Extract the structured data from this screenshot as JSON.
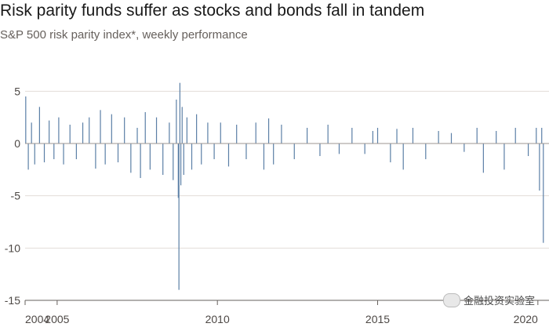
{
  "header": {
    "title": "Risk parity funds suffer as stocks and bonds fall in tandem",
    "subtitle": "S&P 500 risk parity index*, weekly performance"
  },
  "watermark": {
    "text": "金融投资实验室"
  },
  "colors": {
    "bars": "#5b7fa6",
    "grid": "#e3ddd8",
    "zero_line": "#9c9691",
    "axis_line": "#66605c"
  },
  "chart_data": {
    "type": "bar",
    "title": "Risk parity funds suffer as stocks and bonds fall in tandem",
    "subtitle": "S&P 500 risk parity index*, weekly performance",
    "xlabel": "",
    "ylabel": "",
    "xlim": [
      2004.0,
      2020.2
    ],
    "ylim": [
      -15,
      6
    ],
    "yticks": [
      5,
      0,
      -5,
      -10,
      -15
    ],
    "ytick_labels": [
      "5",
      "0",
      "-5",
      "-10",
      "-15"
    ],
    "xticks": [
      2004,
      2005,
      2010,
      2015,
      2020
    ],
    "xtick_labels": [
      "2004",
      "2005",
      "2010",
      "2015",
      "2020"
    ],
    "grid": true,
    "note": "",
    "series": [
      {
        "x": [
          2004.02,
          2004.1,
          2004.2,
          2004.3,
          2004.45,
          2004.6,
          2004.75,
          2004.9,
          2005.05,
          2005.2,
          2005.4,
          2005.6,
          2005.8,
          2006.0,
          2006.2,
          2006.35,
          2006.5,
          2006.7,
          2006.9,
          2007.1,
          2007.3,
          2007.5,
          2007.6,
          2007.75,
          2007.9,
          2008.1,
          2008.3,
          2008.5,
          2008.62,
          2008.72,
          2008.78,
          2008.8,
          2008.83,
          2008.86,
          2008.9,
          2008.95,
          2009.05,
          2009.2,
          2009.35,
          2009.5,
          2009.7,
          2009.9,
          2010.1,
          2010.35,
          2010.6,
          2010.9,
          2011.2,
          2011.45,
          2011.6,
          2011.75,
          2012.0,
          2012.4,
          2012.8,
          2013.2,
          2013.45,
          2013.8,
          2014.2,
          2014.6,
          2014.85,
          2015.0,
          2015.4,
          2015.6,
          2015.8,
          2016.1,
          2016.5,
          2016.9,
          2017.3,
          2017.7,
          2018.1,
          2018.3,
          2018.7,
          2018.95,
          2019.3,
          2019.7,
          2019.95,
          2020.05,
          2020.12,
          2020.17
        ],
        "y": [
          4.5,
          -2.5,
          2.0,
          -2.0,
          3.5,
          -1.8,
          2.2,
          -1.5,
          2.5,
          -2.0,
          1.8,
          -1.5,
          2.0,
          2.5,
          -2.4,
          3.2,
          -2.0,
          2.8,
          -1.8,
          2.5,
          -2.8,
          1.5,
          -3.3,
          3.0,
          -2.5,
          2.5,
          -3.0,
          2.0,
          -3.5,
          4.2,
          -5.2,
          -14.0,
          5.8,
          -4.0,
          3.5,
          -3.0,
          2.5,
          -2.5,
          2.8,
          -2.0,
          2.0,
          -1.5,
          2.0,
          -2.2,
          1.8,
          -1.5,
          2.0,
          -2.5,
          2.4,
          -2.0,
          1.8,
          -1.5,
          1.5,
          -1.2,
          1.8,
          -1.0,
          1.5,
          -1.0,
          1.2,
          1.5,
          -1.8,
          1.4,
          -2.5,
          1.5,
          -1.5,
          1.2,
          1.0,
          -0.8,
          1.5,
          -2.8,
          1.2,
          -2.5,
          1.5,
          -1.2,
          1.5,
          -4.5,
          1.5,
          -9.5
        ]
      }
    ]
  }
}
